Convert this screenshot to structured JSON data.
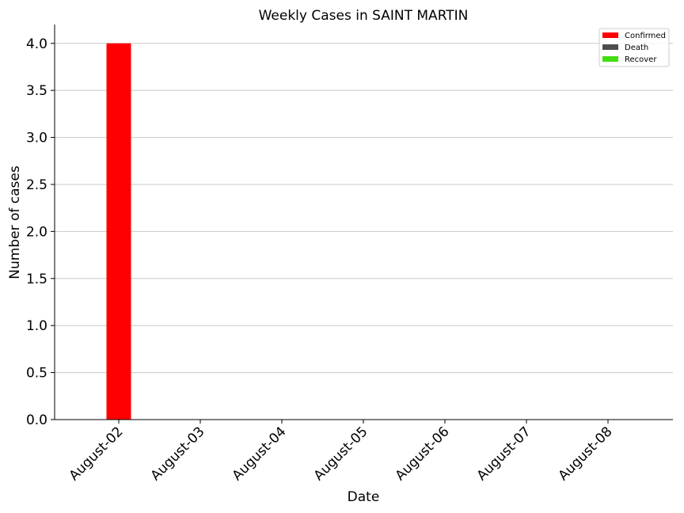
{
  "chart_data": {
    "type": "bar",
    "title": "Weekly Cases in SAINT MARTIN",
    "xlabel": "Date",
    "ylabel": "Number of cases",
    "categories": [
      "August-02",
      "August-03",
      "August-04",
      "August-05",
      "August-06",
      "August-07",
      "August-08"
    ],
    "series": [
      {
        "name": "Confirmed",
        "color": "#ff0000",
        "values": [
          4,
          0,
          0,
          0,
          0,
          0,
          0
        ]
      },
      {
        "name": "Death",
        "color": "#4d4d4d",
        "values": [
          0,
          0,
          0,
          0,
          0,
          0,
          0
        ]
      },
      {
        "name": "Recover",
        "color": "#44dd11",
        "values": [
          0,
          0,
          0,
          0,
          0,
          0,
          0
        ]
      }
    ],
    "ylim": [
      0,
      4.2
    ],
    "yticks": [
      0.0,
      0.5,
      1.0,
      1.5,
      2.0,
      2.5,
      3.0,
      3.5,
      4.0
    ],
    "ytick_labels": [
      "0.0",
      "0.5",
      "1.0",
      "1.5",
      "2.0",
      "2.5",
      "3.0",
      "3.5",
      "4.0"
    ],
    "grid": "horizontal",
    "legend_position": "top-right"
  }
}
